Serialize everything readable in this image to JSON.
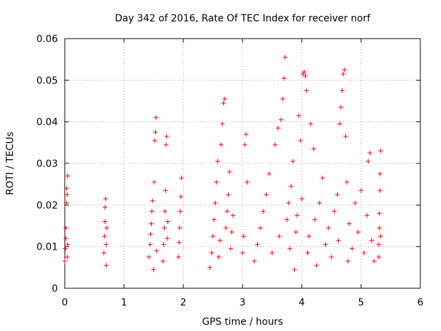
{
  "chart_data": {
    "type": "scatter",
    "title": "Day 342 of 2016, Rate Of TEC Index for receiver norf",
    "xlabel": "GPS time / hours",
    "ylabel": "ROTI / TECUs",
    "xlim": [
      0,
      6
    ],
    "ylim": [
      0,
      0.06
    ],
    "x_ticks": [
      "0",
      "1",
      "2",
      "3",
      "4",
      "5",
      "6"
    ],
    "y_ticks": [
      "0",
      "0.01",
      "0.02",
      "0.03",
      "0.04",
      "0.05",
      "0.06"
    ],
    "grid": true,
    "marker": "+",
    "color": "#ff0000",
    "series": [
      {
        "name": "ROTI",
        "points": [
          [
            0.0,
            0.0065
          ],
          [
            0.01,
            0.0095
          ],
          [
            0.02,
            0.012
          ],
          [
            0.02,
            0.0145
          ],
          [
            0.03,
            0.0205
          ],
          [
            0.03,
            0.024
          ],
          [
            0.04,
            0.0225
          ],
          [
            0.04,
            0.0075
          ],
          [
            0.05,
            0.027
          ],
          [
            0.05,
            0.0105
          ],
          [
            0.66,
            0.0085
          ],
          [
            0.67,
            0.0125
          ],
          [
            0.68,
            0.016
          ],
          [
            0.68,
            0.0195
          ],
          [
            0.69,
            0.0215
          ],
          [
            0.7,
            0.0055
          ],
          [
            0.7,
            0.0105
          ],
          [
            0.71,
            0.0145
          ],
          [
            1.42,
            0.0075
          ],
          [
            1.44,
            0.0105
          ],
          [
            1.45,
            0.013
          ],
          [
            1.46,
            0.0155
          ],
          [
            1.47,
            0.0185
          ],
          [
            1.48,
            0.021
          ],
          [
            1.5,
            0.0045
          ],
          [
            1.51,
            0.0255
          ],
          [
            1.52,
            0.0355
          ],
          [
            1.53,
            0.0375
          ],
          [
            1.54,
            0.041
          ],
          [
            1.55,
            0.009
          ],
          [
            1.66,
            0.0065
          ],
          [
            1.67,
            0.0105
          ],
          [
            1.68,
            0.0145
          ],
          [
            1.69,
            0.0185
          ],
          [
            1.7,
            0.0235
          ],
          [
            1.71,
            0.0345
          ],
          [
            1.72,
            0.0365
          ],
          [
            1.73,
            0.012
          ],
          [
            1.74,
            0.016
          ],
          [
            1.92,
            0.0075
          ],
          [
            1.93,
            0.011
          ],
          [
            1.94,
            0.0145
          ],
          [
            1.95,
            0.0185
          ],
          [
            1.96,
            0.022
          ],
          [
            1.97,
            0.0265
          ],
          [
            2.45,
            0.005
          ],
          [
            2.48,
            0.0085
          ],
          [
            2.5,
            0.0125
          ],
          [
            2.52,
            0.0165
          ],
          [
            2.54,
            0.0205
          ],
          [
            2.56,
            0.0255
          ],
          [
            2.58,
            0.0305
          ],
          [
            2.6,
            0.0075
          ],
          [
            2.62,
            0.0115
          ],
          [
            2.64,
            0.0345
          ],
          [
            2.66,
            0.0395
          ],
          [
            2.68,
            0.0445
          ],
          [
            2.7,
            0.0455
          ],
          [
            2.72,
            0.0145
          ],
          [
            2.74,
            0.0185
          ],
          [
            2.76,
            0.0225
          ],
          [
            2.78,
            0.028
          ],
          [
            2.8,
            0.0095
          ],
          [
            2.82,
            0.0135
          ],
          [
            2.84,
            0.0175
          ],
          [
            3.0,
            0.0085
          ],
          [
            3.02,
            0.0125
          ],
          [
            3.04,
            0.0345
          ],
          [
            3.06,
            0.037
          ],
          [
            3.08,
            0.0255
          ],
          [
            3.2,
            0.0065
          ],
          [
            3.25,
            0.0105
          ],
          [
            3.3,
            0.0145
          ],
          [
            3.35,
            0.0185
          ],
          [
            3.4,
            0.0225
          ],
          [
            3.45,
            0.0275
          ],
          [
            3.5,
            0.0085
          ],
          [
            3.55,
            0.0345
          ],
          [
            3.6,
            0.0385
          ],
          [
            3.62,
            0.0125
          ],
          [
            3.65,
            0.0405
          ],
          [
            3.68,
            0.0455
          ],
          [
            3.7,
            0.0505
          ],
          [
            3.72,
            0.0555
          ],
          [
            3.75,
            0.0165
          ],
          [
            3.78,
            0.0205
          ],
          [
            3.8,
            0.0095
          ],
          [
            3.82,
            0.0245
          ],
          [
            3.85,
            0.0305
          ],
          [
            3.88,
            0.0045
          ],
          [
            3.9,
            0.0135
          ],
          [
            3.92,
            0.0175
          ],
          [
            3.95,
            0.0415
          ],
          [
            3.98,
            0.0355
          ],
          [
            4.0,
            0.0215
          ],
          [
            4.02,
            0.0515
          ],
          [
            4.04,
            0.052
          ],
          [
            4.06,
            0.051
          ],
          [
            4.08,
            0.0475
          ],
          [
            4.1,
            0.0085
          ],
          [
            4.12,
            0.0125
          ],
          [
            4.15,
            0.0395
          ],
          [
            4.2,
            0.0335
          ],
          [
            4.22,
            0.0165
          ],
          [
            4.25,
            0.0055
          ],
          [
            4.3,
            0.0205
          ],
          [
            4.35,
            0.0265
          ],
          [
            4.4,
            0.0105
          ],
          [
            4.45,
            0.0145
          ],
          [
            4.5,
            0.0075
          ],
          [
            4.55,
            0.0185
          ],
          [
            4.6,
            0.0225
          ],
          [
            4.62,
            0.0115
          ],
          [
            4.64,
            0.0395
          ],
          [
            4.66,
            0.0435
          ],
          [
            4.68,
            0.0475
          ],
          [
            4.7,
            0.0515
          ],
          [
            4.72,
            0.0525
          ],
          [
            4.74,
            0.0365
          ],
          [
            4.76,
            0.0255
          ],
          [
            4.78,
            0.0065
          ],
          [
            4.8,
            0.0155
          ],
          [
            4.85,
            0.0095
          ],
          [
            4.9,
            0.0205
          ],
          [
            4.95,
            0.0135
          ],
          [
            5.0,
            0.0235
          ],
          [
            5.05,
            0.0085
          ],
          [
            5.1,
            0.0175
          ],
          [
            5.12,
            0.0305
          ],
          [
            5.15,
            0.0325
          ],
          [
            5.18,
            0.0115
          ],
          [
            5.22,
            0.0065
          ],
          [
            5.3,
            0.0075
          ],
          [
            5.3,
            0.0105
          ],
          [
            5.31,
            0.0145
          ],
          [
            5.31,
            0.018
          ],
          [
            5.32,
            0.0235
          ],
          [
            5.32,
            0.0275
          ],
          [
            5.33,
            0.033
          ],
          [
            5.33,
            0.0125
          ]
        ]
      }
    ]
  }
}
